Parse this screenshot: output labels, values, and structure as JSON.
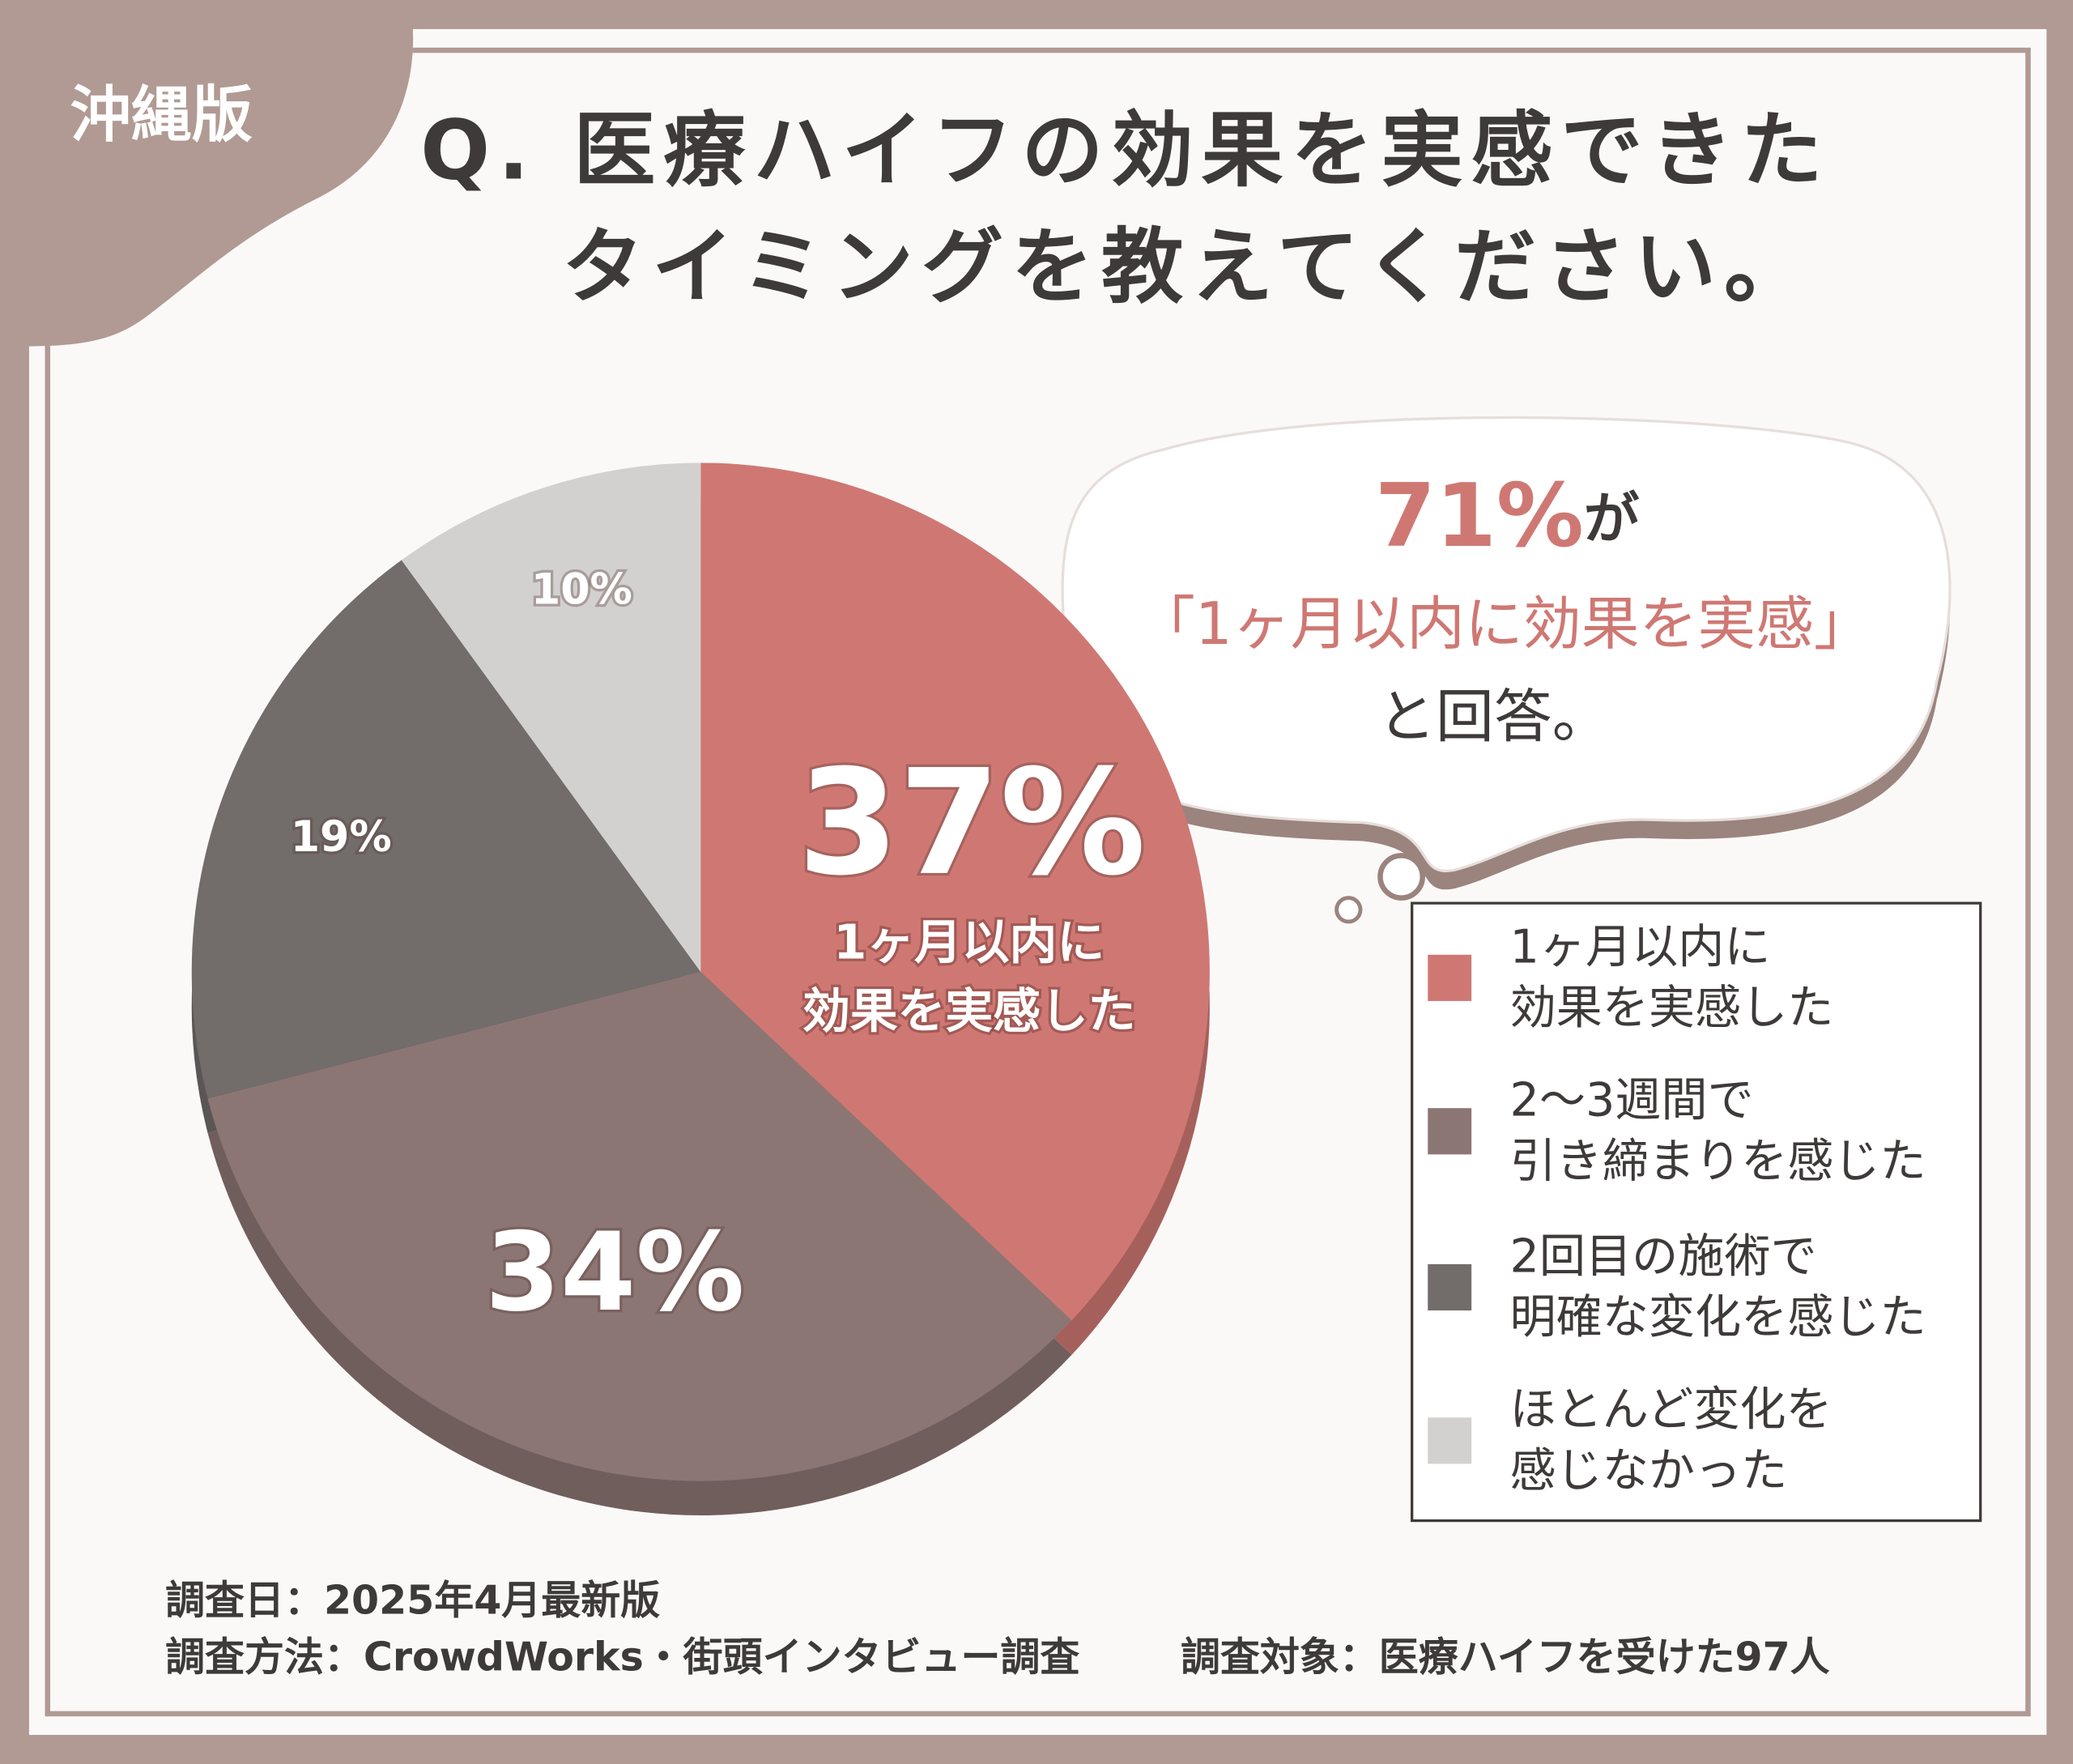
{
  "badge": "沖縄版",
  "chart_data": {
    "type": "pie",
    "title": "Q. 医療ハイフの効果を実感できた\nタイミングを教えてください。",
    "categories": [
      "1ヶ月以内に\n効果を実感した",
      "2〜3週間で\n引き締まりを感じた",
      "2回目の施術で\n明確な変化を感じた",
      "ほとんど変化を\n感じなかった"
    ],
    "values": [
      37,
      34,
      19,
      10
    ],
    "value_labels": [
      "37%",
      "34%",
      "19%",
      "10%"
    ],
    "colors": [
      "#cf7873",
      "#8c7673",
      "#726c6b",
      "#d3d1d0"
    ],
    "legend": "right"
  },
  "callout": {
    "highlight": "71%",
    "highlight_suffix": "が",
    "line2": "「1ヶ月以内に効果を実感」",
    "line3": "と回答。"
  },
  "footer": {
    "date": "調査日：2025年4月最新版",
    "method": "調査方法：CrowdWorks・街頭インタビュー調査",
    "target": "調査対象：医療ハイフを受けた97人"
  }
}
